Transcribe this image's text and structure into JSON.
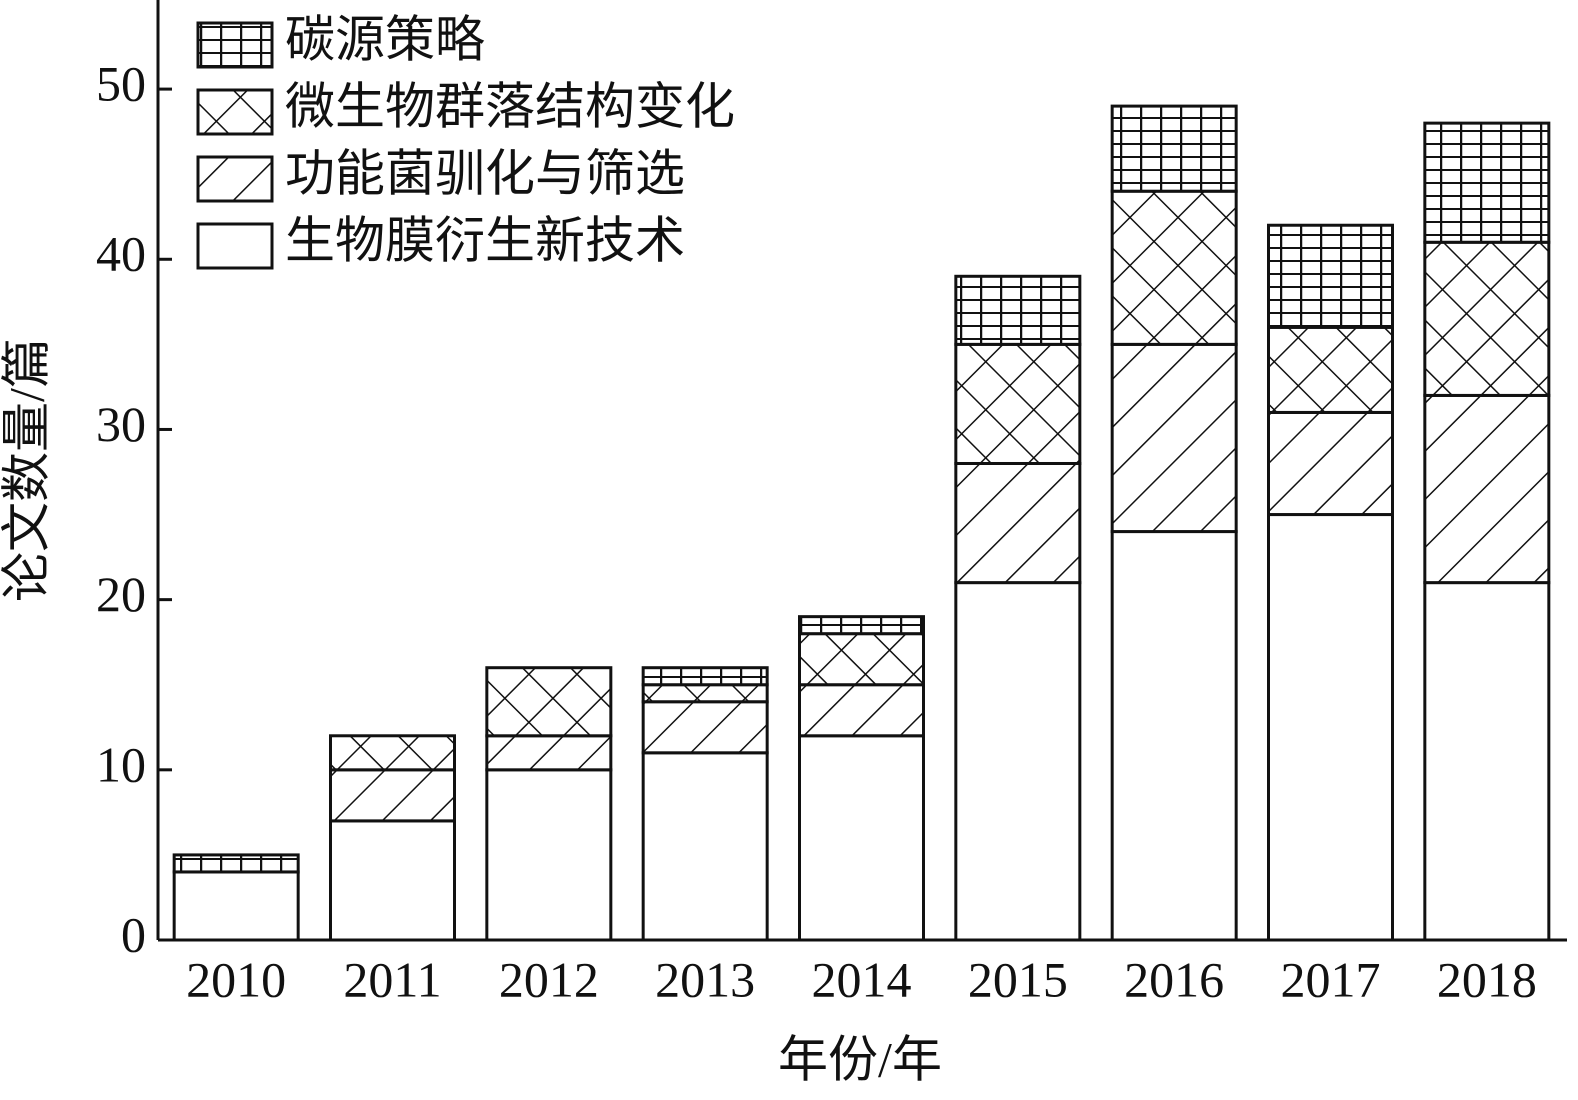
{
  "chart_data": {
    "type": "stacked_bar",
    "x_label": "年份/年",
    "y_label": "论文数量/篇",
    "categories": [
      "2010",
      "2011",
      "2012",
      "2013",
      "2014",
      "2015",
      "2016",
      "2017",
      "2018"
    ],
    "series": [
      {
        "name": "生物膜衍生新技术",
        "color": "#ffffff",
        "hatch": "none",
        "values": [
          4,
          7,
          10,
          11,
          12,
          21,
          24,
          25,
          21
        ]
      },
      {
        "name": "功能菌驯化与筛选",
        "color": "#ffffff",
        "hatch": "/",
        "values": [
          0,
          3,
          2,
          3,
          3,
          7,
          11,
          6,
          11
        ]
      },
      {
        "name": "微生物群落结构变化",
        "color": "#ffffff",
        "hatch": "x",
        "values": [
          0,
          2,
          4,
          1,
          3,
          7,
          9,
          5,
          9
        ]
      },
      {
        "name": "碳源策略",
        "color": "#ffffff",
        "hatch": "+",
        "values": [
          1,
          0,
          0,
          1,
          1,
          4,
          5,
          6,
          7
        ]
      }
    ],
    "ylim": [
      0,
      55
    ],
    "yticks": [
      0,
      10,
      20,
      30,
      40,
      50
    ],
    "legend": "upper left"
  }
}
